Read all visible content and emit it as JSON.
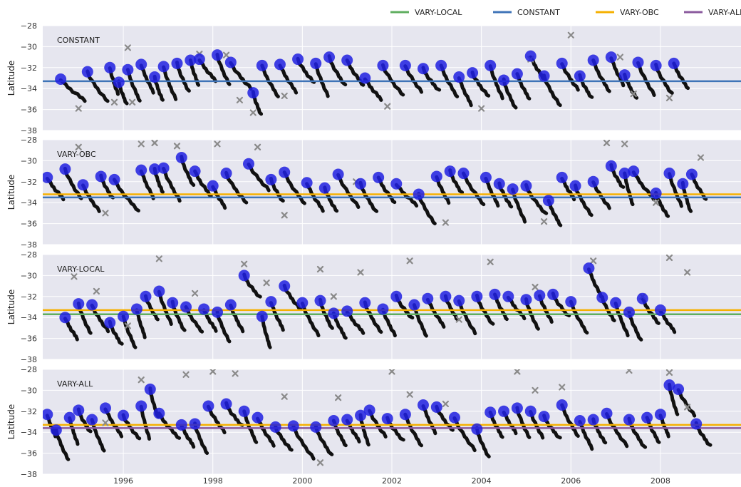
{
  "legend": {
    "placement": "top-right",
    "entries": [
      {
        "label": "VARY-LOCAL",
        "color": "#5fae5f"
      },
      {
        "label": "CONSTANT",
        "color": "#3f74b8"
      },
      {
        "label": "VARY-OBC",
        "color": "#f5b000"
      },
      {
        "label": "VARY-ALL",
        "color": "#8a5a9e"
      }
    ]
  },
  "chart_data": [
    {
      "type": "scatter",
      "panel_label": "CONSTANT",
      "ylabel": "Latitude",
      "ylim": [
        -38,
        -28
      ],
      "xlim": [
        1994.2,
        2009.8
      ],
      "yticks": [
        -28,
        -30,
        -32,
        -34,
        -36,
        -38
      ],
      "grid": true,
      "hlines": [
        {
          "name": "CONSTANT",
          "color": "#3f74b8",
          "y": -33.3
        }
      ],
      "peaks": [
        [
          1994.6,
          -33.1
        ],
        [
          1995.2,
          -32.4
        ],
        [
          1995.7,
          -32.0
        ],
        [
          1995.9,
          -33.4
        ],
        [
          1996.1,
          -32.2
        ],
        [
          1996.4,
          -31.7
        ],
        [
          1996.7,
          -32.9
        ],
        [
          1996.9,
          -31.9
        ],
        [
          1997.2,
          -31.6
        ],
        [
          1997.5,
          -31.3
        ],
        [
          1997.7,
          -31.2
        ],
        [
          1998.1,
          -30.8
        ],
        [
          1998.4,
          -31.5
        ],
        [
          1998.9,
          -34.4
        ],
        [
          1999.1,
          -31.8
        ],
        [
          1999.5,
          -31.7
        ],
        [
          1999.9,
          -31.2
        ],
        [
          2000.3,
          -31.6
        ],
        [
          2000.6,
          -31.0
        ],
        [
          2001.0,
          -31.3
        ],
        [
          2001.4,
          -33.0
        ],
        [
          2001.8,
          -31.8
        ],
        [
          2002.3,
          -31.8
        ],
        [
          2002.7,
          -32.1
        ],
        [
          2003.1,
          -31.8
        ],
        [
          2003.5,
          -32.9
        ],
        [
          2003.8,
          -32.5
        ],
        [
          2004.2,
          -31.8
        ],
        [
          2004.5,
          -33.2
        ],
        [
          2004.8,
          -32.6
        ],
        [
          2005.1,
          -30.9
        ],
        [
          2005.4,
          -32.8
        ],
        [
          2005.8,
          -31.6
        ],
        [
          2006.2,
          -32.8
        ],
        [
          2006.5,
          -31.3
        ],
        [
          2006.9,
          -31.0
        ],
        [
          2007.2,
          -32.7
        ],
        [
          2007.5,
          -31.5
        ],
        [
          2007.9,
          -31.8
        ],
        [
          2008.3,
          -31.6
        ]
      ],
      "outliers": [
        [
          1995.0,
          -35.9
        ],
        [
          1995.8,
          -35.3
        ],
        [
          1996.1,
          -30.1
        ],
        [
          1996.2,
          -35.3
        ],
        [
          1997.7,
          -30.7
        ],
        [
          1998.3,
          -30.8
        ],
        [
          1998.6,
          -35.1
        ],
        [
          1998.9,
          -36.3
        ],
        [
          1999.6,
          -34.7
        ],
        [
          2001.9,
          -35.7
        ],
        [
          2004.0,
          -35.9
        ],
        [
          2005.1,
          -31.2
        ],
        [
          2006.0,
          -28.9
        ],
        [
          2007.1,
          -31.0
        ],
        [
          2007.4,
          -34.5
        ],
        [
          2008.2,
          -34.9
        ]
      ]
    },
    {
      "type": "scatter",
      "panel_label": "VARY-OBC",
      "ylabel": "Latitude",
      "ylim": [
        -38,
        -28
      ],
      "xlim": [
        1994.2,
        2009.8
      ],
      "yticks": [
        -28,
        -30,
        -32,
        -34,
        -36,
        -38
      ],
      "grid": true,
      "hlines": [
        {
          "name": "VARY-OBC",
          "color": "#f5b000",
          "y": -33.2
        },
        {
          "name": "CONSTANT",
          "color": "#3f74b8",
          "y": -33.5
        }
      ],
      "peaks": [
        [
          1994.3,
          -31.6
        ],
        [
          1994.7,
          -30.8
        ],
        [
          1995.1,
          -32.3
        ],
        [
          1995.5,
          -31.5
        ],
        [
          1995.8,
          -31.8
        ],
        [
          1996.4,
          -30.9
        ],
        [
          1996.7,
          -30.8
        ],
        [
          1996.9,
          -30.7
        ],
        [
          1997.3,
          -29.7
        ],
        [
          1997.6,
          -31.0
        ],
        [
          1998.0,
          -32.4
        ],
        [
          1998.3,
          -31.2
        ],
        [
          1998.8,
          -30.3
        ],
        [
          1999.3,
          -31.8
        ],
        [
          1999.6,
          -31.1
        ],
        [
          2000.1,
          -32.1
        ],
        [
          2000.5,
          -32.6
        ],
        [
          2000.8,
          -31.3
        ],
        [
          2001.3,
          -32.2
        ],
        [
          2001.7,
          -31.6
        ],
        [
          2002.1,
          -32.2
        ],
        [
          2002.6,
          -33.2
        ],
        [
          2003.0,
          -31.5
        ],
        [
          2003.3,
          -31.0
        ],
        [
          2003.6,
          -31.2
        ],
        [
          2004.1,
          -31.6
        ],
        [
          2004.4,
          -32.2
        ],
        [
          2004.7,
          -32.7
        ],
        [
          2005.0,
          -32.4
        ],
        [
          2005.5,
          -33.8
        ],
        [
          2005.8,
          -31.6
        ],
        [
          2006.1,
          -32.4
        ],
        [
          2006.5,
          -32.0
        ],
        [
          2006.9,
          -30.5
        ],
        [
          2007.2,
          -31.2
        ],
        [
          2007.4,
          -31.0
        ],
        [
          2007.9,
          -33.1
        ],
        [
          2008.2,
          -31.2
        ],
        [
          2008.5,
          -32.2
        ],
        [
          2008.7,
          -31.3
        ]
      ],
      "outliers": [
        [
          1995.0,
          -28.7
        ],
        [
          1995.6,
          -35.0
        ],
        [
          1996.4,
          -28.4
        ],
        [
          1996.7,
          -28.3
        ],
        [
          1997.2,
          -28.6
        ],
        [
          1998.1,
          -28.4
        ],
        [
          1999.0,
          -28.7
        ],
        [
          1999.6,
          -35.2
        ],
        [
          2001.2,
          -32.0
        ],
        [
          2003.2,
          -35.9
        ],
        [
          2005.4,
          -35.8
        ],
        [
          2006.8,
          -28.3
        ],
        [
          2007.2,
          -28.4
        ],
        [
          2007.9,
          -34.0
        ],
        [
          2008.9,
          -29.7
        ]
      ]
    },
    {
      "type": "scatter",
      "panel_label": "VARY-LOCAL",
      "ylabel": "Latitude",
      "ylim": [
        -38,
        -28
      ],
      "xlim": [
        1994.2,
        2009.8
      ],
      "yticks": [
        -28,
        -30,
        -32,
        -34,
        -36,
        -38
      ],
      "grid": true,
      "hlines": [
        {
          "name": "VARY-OBC",
          "color": "#f5b000",
          "y": -33.3
        },
        {
          "name": "VARY-LOCAL",
          "color": "#5fae5f",
          "y": -33.7
        }
      ],
      "peaks": [
        [
          1994.7,
          -34.0
        ],
        [
          1995.0,
          -32.7
        ],
        [
          1995.3,
          -32.8
        ],
        [
          1995.7,
          -34.5
        ],
        [
          1996.0,
          -33.9
        ],
        [
          1996.3,
          -33.2
        ],
        [
          1996.5,
          -32.0
        ],
        [
          1996.8,
          -31.5
        ],
        [
          1997.1,
          -32.6
        ],
        [
          1997.4,
          -33.0
        ],
        [
          1997.8,
          -33.2
        ],
        [
          1998.1,
          -33.5
        ],
        [
          1998.4,
          -32.8
        ],
        [
          1998.7,
          -30.0
        ],
        [
          1999.1,
          -33.9
        ],
        [
          1999.3,
          -32.5
        ],
        [
          1999.6,
          -31.0
        ],
        [
          2000.0,
          -32.6
        ],
        [
          2000.4,
          -32.4
        ],
        [
          2000.7,
          -33.6
        ],
        [
          2001.0,
          -33.4
        ],
        [
          2001.4,
          -32.6
        ],
        [
          2001.8,
          -33.2
        ],
        [
          2002.1,
          -32.0
        ],
        [
          2002.5,
          -32.8
        ],
        [
          2002.8,
          -32.2
        ],
        [
          2003.2,
          -32.0
        ],
        [
          2003.5,
          -32.4
        ],
        [
          2003.9,
          -32.0
        ],
        [
          2004.3,
          -31.8
        ],
        [
          2004.6,
          -32.0
        ],
        [
          2005.0,
          -32.3
        ],
        [
          2005.3,
          -31.9
        ],
        [
          2005.6,
          -31.8
        ],
        [
          2006.0,
          -32.5
        ],
        [
          2006.4,
          -29.3
        ],
        [
          2006.7,
          -32.1
        ],
        [
          2007.0,
          -32.6
        ],
        [
          2007.3,
          -33.5
        ],
        [
          2007.6,
          -32.2
        ],
        [
          2008.0,
          -33.3
        ]
      ],
      "outliers": [
        [
          1994.9,
          -30.1
        ],
        [
          1995.4,
          -31.5
        ],
        [
          1996.1,
          -34.8
        ],
        [
          1996.8,
          -28.4
        ],
        [
          1997.6,
          -31.7
        ],
        [
          1998.7,
          -28.9
        ],
        [
          1999.2,
          -30.7
        ],
        [
          2000.4,
          -29.4
        ],
        [
          2000.7,
          -32.0
        ],
        [
          2001.3,
          -29.7
        ],
        [
          2002.4,
          -28.6
        ],
        [
          2003.5,
          -34.2
        ],
        [
          2004.2,
          -28.7
        ],
        [
          2005.2,
          -31.1
        ],
        [
          2006.5,
          -28.6
        ],
        [
          2007.6,
          -32.0
        ],
        [
          2008.2,
          -28.3
        ],
        [
          2008.6,
          -29.7
        ]
      ]
    },
    {
      "type": "scatter",
      "panel_label": "VARY-ALL",
      "ylabel": "Latitude",
      "ylim": [
        -38,
        -28
      ],
      "xlim": [
        1994.2,
        2009.8
      ],
      "yticks": [
        -28,
        -30,
        -32,
        -34,
        -36,
        -38
      ],
      "xticks": [
        1996,
        1998,
        2000,
        2002,
        2004,
        2006,
        2008
      ],
      "grid": true,
      "hlines": [
        {
          "name": "VARY-OBC",
          "color": "#f5b000",
          "y": -33.3
        },
        {
          "name": "VARY-ALL",
          "color": "#8a5a9e",
          "y": -33.6
        }
      ],
      "peaks": [
        [
          1994.3,
          -32.3
        ],
        [
          1994.5,
          -33.8
        ],
        [
          1994.8,
          -32.6
        ],
        [
          1995.0,
          -31.9
        ],
        [
          1995.3,
          -32.8
        ],
        [
          1995.6,
          -31.7
        ],
        [
          1996.0,
          -32.4
        ],
        [
          1996.4,
          -31.5
        ],
        [
          1996.6,
          -29.9
        ],
        [
          1996.8,
          -32.2
        ],
        [
          1997.3,
          -33.3
        ],
        [
          1997.6,
          -33.2
        ],
        [
          1997.9,
          -31.5
        ],
        [
          1998.3,
          -31.3
        ],
        [
          1998.7,
          -32.0
        ],
        [
          1999.0,
          -32.6
        ],
        [
          1999.4,
          -33.5
        ],
        [
          1999.8,
          -33.4
        ],
        [
          2000.3,
          -33.5
        ],
        [
          2000.7,
          -32.9
        ],
        [
          2001.0,
          -32.8
        ],
        [
          2001.3,
          -32.4
        ],
        [
          2001.5,
          -31.9
        ],
        [
          2001.9,
          -32.7
        ],
        [
          2002.3,
          -32.3
        ],
        [
          2002.7,
          -31.4
        ],
        [
          2003.0,
          -31.6
        ],
        [
          2003.4,
          -32.6
        ],
        [
          2003.9,
          -33.7
        ],
        [
          2004.2,
          -32.1
        ],
        [
          2004.5,
          -32.0
        ],
        [
          2004.8,
          -31.7
        ],
        [
          2005.1,
          -32.0
        ],
        [
          2005.4,
          -32.5
        ],
        [
          2005.8,
          -31.4
        ],
        [
          2006.2,
          -32.9
        ],
        [
          2006.5,
          -32.8
        ],
        [
          2006.8,
          -32.2
        ],
        [
          2007.3,
          -32.8
        ],
        [
          2007.7,
          -32.6
        ],
        [
          2008.0,
          -32.3
        ],
        [
          2008.2,
          -29.5
        ],
        [
          2008.4,
          -29.9
        ],
        [
          2008.8,
          -33.2
        ]
      ],
      "outliers": [
        [
          1995.6,
          -33.1
        ],
        [
          1996.4,
          -29.0
        ],
        [
          1997.4,
          -28.5
        ],
        [
          1998.0,
          -28.2
        ],
        [
          1998.5,
          -28.4
        ],
        [
          1999.6,
          -30.6
        ],
        [
          2000.4,
          -36.9
        ],
        [
          2000.8,
          -30.7
        ],
        [
          2002.0,
          -28.2
        ],
        [
          2002.4,
          -30.4
        ],
        [
          2003.2,
          -31.3
        ],
        [
          2004.8,
          -28.2
        ],
        [
          2005.2,
          -30.0
        ],
        [
          2005.8,
          -29.7
        ],
        [
          2007.3,
          -28.1
        ],
        [
          2008.2,
          -28.3
        ],
        [
          2008.6,
          -31.6
        ]
      ]
    }
  ]
}
